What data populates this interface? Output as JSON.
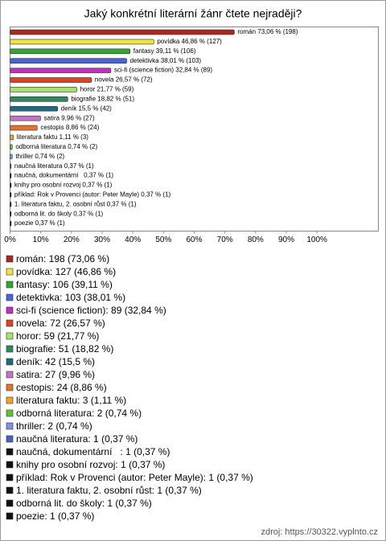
{
  "chart_data": {
    "type": "bar",
    "orientation": "horizontal",
    "title": "Jaký konkrétní literární žánr čtete nejraději?",
    "values": [
      73.06,
      46.86,
      39.11,
      38.01,
      32.84,
      26.57,
      21.77,
      18.82,
      15.5,
      9.96,
      8.86,
      1.11,
      0.74,
      0.74,
      0.37,
      0.37,
      0.37,
      0.37,
      0.37,
      0.37,
      0.37
    ],
    "value_labels": [
      "román 73,06 % (198)",
      "povídka 46,86 % (127)",
      "fantasy 39,11 % (106)",
      "detektivka 38,01 % (103)",
      "sci-fi (science fiction) 32,84 % (89)",
      "novela 26,57 % (72)",
      "horor 21,77 % (59)",
      "biografie 18,82 % (51)",
      "deník 15,5 % (42)",
      "satira 9,96 % (27)",
      "cestopis 8,86 % (24)",
      "literatura faktu 1,11 % (3)",
      "odborná literatura 0,74 % (2)",
      "thriller 0,74 % (2)",
      "naučná literatura 0,37 % (1)",
      "naučná, dokumentární   0,37 % (1)",
      "knihy pro osobní rozvoj 0,37 % (1)",
      "příklad: Rok v Provenci (autor: Peter Mayle) 0,37 % (1)",
      "1. literatura faktu, 2. osobní růst 0,37 % (1)",
      "odborná lit. do školy 0,37 % (1)",
      "poezie 0,37 % (1)"
    ],
    "legend_labels": [
      "román: 198 (73,06 %)",
      "povídka: 127 (46,86 %)",
      "fantasy: 106 (39,11 %)",
      "detektivka: 103 (38,01 %)",
      "sci-fi (science fiction): 89 (32,84 %)",
      "novela: 72 (26,57 %)",
      "horor: 59 (21,77 %)",
      "biografie: 51 (18,82 %)",
      "deník: 42 (15,5 %)",
      "satira: 27 (9,96 %)",
      "cestopis: 24 (8,86 %)",
      "literatura faktu: 3 (1,11 %)",
      "odborná literatura: 2 (0,74 %)",
      "thriller: 2 (0,74 %)",
      "naučná literatura: 1 (0,37 %)",
      "naučná, dokumentární   : 1 (0,37 %)",
      "knihy pro osobní rozvoj: 1 (0,37 %)",
      "příklad: Rok v Provenci (autor: Peter Mayle): 1 (0,37 %)",
      "1. literatura faktu, 2. osobní růst: 1 (0,37 %)",
      "odborná lit. do školy: 1 (0,37 %)",
      "poezie: 1 (0,37 %)"
    ],
    "colors": [
      "#a8281e",
      "#f2e43c",
      "#2ea82e",
      "#4464e4",
      "#c42cc4",
      "#e2401e",
      "#a4e464",
      "#2e8a5a",
      "#1e6a84",
      "#c474c4",
      "#e4742a",
      "#f2a428",
      "#64c42e",
      "#7894e4",
      "#4464c4",
      "#111111",
      "#111111",
      "#111111",
      "#111111",
      "#111111",
      "#111111"
    ],
    "xlim": [
      0,
      120
    ],
    "xticks": [
      {
        "value": 0,
        "label": "0%"
      },
      {
        "value": 10,
        "label": "10%"
      },
      {
        "value": 20,
        "label": "20%"
      },
      {
        "value": 30,
        "label": "30%"
      },
      {
        "value": 40,
        "label": "40%"
      },
      {
        "value": 50,
        "label": "50%"
      },
      {
        "value": 60,
        "label": "60%"
      },
      {
        "value": 70,
        "label": "70%"
      },
      {
        "value": 80,
        "label": "80%"
      },
      {
        "value": 90,
        "label": "90%"
      },
      {
        "value": 100,
        "label": "100%"
      }
    ],
    "grid": false,
    "source": "zdroj: https://30322.vyplnto.cz"
  }
}
